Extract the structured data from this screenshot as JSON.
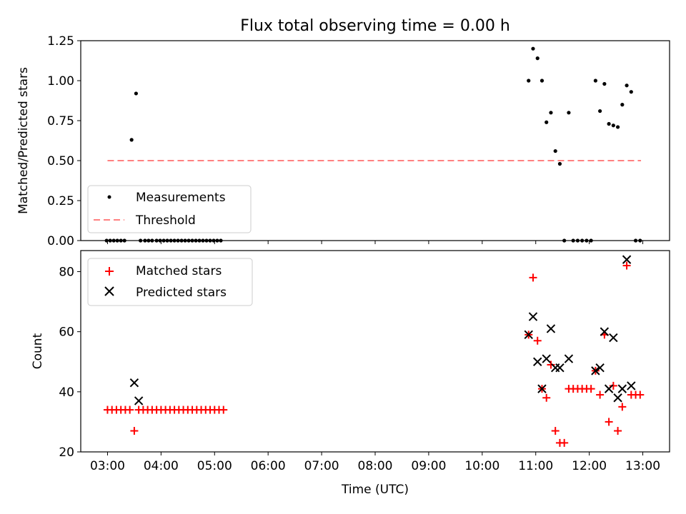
{
  "chart_data": [
    {
      "type": "scatter",
      "title": "Flux total observing time = 0.00 h",
      "xlabel": "",
      "ylabel": "Matched/Predicted stars",
      "xlim": [
        "02:30",
        "13:30"
      ],
      "ylim": [
        0,
        1.25
      ],
      "yticks": [
        "0.00",
        "0.25",
        "0.50",
        "0.75",
        "1.00",
        "1.25"
      ],
      "legend_position": "lower-left",
      "threshold": {
        "name": "Threshold",
        "y": 0.5,
        "x_start": "03:00",
        "x_end": "12:58",
        "color": "#ff8080"
      },
      "series": [
        {
          "name": "Measurements",
          "color": "#000000",
          "points": [
            [
              "02:59",
              0
            ],
            [
              "03:03",
              0
            ],
            [
              "03:07",
              0
            ],
            [
              "03:11",
              0
            ],
            [
              "03:15",
              0
            ],
            [
              "03:19",
              0
            ],
            [
              "03:27",
              0.63
            ],
            [
              "03:32",
              0.92
            ],
            [
              "03:37",
              0
            ],
            [
              "03:42",
              0
            ],
            [
              "03:46",
              0
            ],
            [
              "03:50",
              0
            ],
            [
              "03:55",
              0
            ],
            [
              "03:59",
              0
            ],
            [
              "04:03",
              0
            ],
            [
              "04:07",
              0
            ],
            [
              "04:11",
              0
            ],
            [
              "04:15",
              0
            ],
            [
              "04:19",
              0
            ],
            [
              "04:23",
              0
            ],
            [
              "04:27",
              0
            ],
            [
              "04:31",
              0
            ],
            [
              "04:35",
              0
            ],
            [
              "04:39",
              0
            ],
            [
              "04:43",
              0
            ],
            [
              "04:47",
              0
            ],
            [
              "04:51",
              0
            ],
            [
              "04:55",
              0
            ],
            [
              "04:59",
              0
            ],
            [
              "05:03",
              0
            ],
            [
              "05:07",
              0
            ],
            [
              "10:52",
              1.0
            ],
            [
              "10:57",
              1.2
            ],
            [
              "11:02",
              1.14
            ],
            [
              "11:07",
              1.0
            ],
            [
              "11:12",
              0.74
            ],
            [
              "11:17",
              0.8
            ],
            [
              "11:22",
              0.56
            ],
            [
              "11:27",
              0.48
            ],
            [
              "11:32",
              0
            ],
            [
              "11:37",
              0.8
            ],
            [
              "11:42",
              0
            ],
            [
              "11:47",
              0
            ],
            [
              "11:52",
              0
            ],
            [
              "11:57",
              0
            ],
            [
              "12:02",
              0
            ],
            [
              "12:07",
              1.0
            ],
            [
              "12:12",
              0.81
            ],
            [
              "12:17",
              0.98
            ],
            [
              "12:22",
              0.73
            ],
            [
              "12:27",
              0.72
            ],
            [
              "12:32",
              0.71
            ],
            [
              "12:37",
              0.85
            ],
            [
              "12:42",
              0.97
            ],
            [
              "12:47",
              0.93
            ],
            [
              "12:52",
              0
            ],
            [
              "12:57",
              0
            ]
          ]
        }
      ]
    },
    {
      "type": "scatter",
      "title": "",
      "xlabel": "Time (UTC)",
      "ylabel": "Count",
      "xlim": [
        "02:30",
        "13:30"
      ],
      "ylim": [
        20,
        87
      ],
      "yticks": [
        "20",
        "40",
        "60",
        "80"
      ],
      "xticks": [
        "03:00",
        "04:00",
        "05:00",
        "06:00",
        "07:00",
        "08:00",
        "09:00",
        "10:00",
        "11:00",
        "12:00",
        "13:00"
      ],
      "legend_position": "upper-left",
      "series": [
        {
          "name": "Matched stars",
          "color": "#ff0000",
          "marker": "plus",
          "points": [
            [
              "03:00",
              34
            ],
            [
              "03:05",
              34
            ],
            [
              "03:10",
              34
            ],
            [
              "03:15",
              34
            ],
            [
              "03:20",
              34
            ],
            [
              "03:25",
              34
            ],
            [
              "03:30",
              27
            ],
            [
              "03:35",
              34
            ],
            [
              "03:40",
              34
            ],
            [
              "03:45",
              34
            ],
            [
              "03:50",
              34
            ],
            [
              "03:55",
              34
            ],
            [
              "04:00",
              34
            ],
            [
              "04:05",
              34
            ],
            [
              "04:10",
              34
            ],
            [
              "04:15",
              34
            ],
            [
              "04:20",
              34
            ],
            [
              "04:25",
              34
            ],
            [
              "04:30",
              34
            ],
            [
              "04:35",
              34
            ],
            [
              "04:40",
              34
            ],
            [
              "04:45",
              34
            ],
            [
              "04:50",
              34
            ],
            [
              "04:55",
              34
            ],
            [
              "05:00",
              34
            ],
            [
              "05:05",
              34
            ],
            [
              "05:10",
              34
            ],
            [
              "10:52",
              59
            ],
            [
              "10:57",
              78
            ],
            [
              "11:02",
              57
            ],
            [
              "11:07",
              41
            ],
            [
              "11:12",
              38
            ],
            [
              "11:17",
              49
            ],
            [
              "11:22",
              27
            ],
            [
              "11:27",
              23
            ],
            [
              "11:32",
              23
            ],
            [
              "11:37",
              41
            ],
            [
              "11:42",
              41
            ],
            [
              "11:47",
              41
            ],
            [
              "11:52",
              41
            ],
            [
              "11:57",
              41
            ],
            [
              "12:02",
              41
            ],
            [
              "12:07",
              47
            ],
            [
              "12:12",
              39
            ],
            [
              "12:17",
              59
            ],
            [
              "12:22",
              30
            ],
            [
              "12:27",
              42
            ],
            [
              "12:32",
              27
            ],
            [
              "12:37",
              35
            ],
            [
              "12:42",
              82
            ],
            [
              "12:47",
              39
            ],
            [
              "12:52",
              39
            ],
            [
              "12:57",
              39
            ]
          ]
        },
        {
          "name": "Predicted stars",
          "color": "#000000",
          "marker": "x",
          "points": [
            [
              "03:30",
              43
            ],
            [
              "03:35",
              37
            ],
            [
              "10:52",
              59
            ],
            [
              "10:57",
              65
            ],
            [
              "11:02",
              50
            ],
            [
              "11:07",
              41
            ],
            [
              "11:12",
              51
            ],
            [
              "11:17",
              61
            ],
            [
              "11:22",
              48
            ],
            [
              "11:27",
              48
            ],
            [
              "11:37",
              51
            ],
            [
              "12:07",
              47
            ],
            [
              "12:12",
              48
            ],
            [
              "12:17",
              60
            ],
            [
              "12:22",
              41
            ],
            [
              "12:27",
              58
            ],
            [
              "12:32",
              38
            ],
            [
              "12:37",
              41
            ],
            [
              "12:42",
              84
            ],
            [
              "12:47",
              42
            ]
          ]
        }
      ]
    }
  ]
}
